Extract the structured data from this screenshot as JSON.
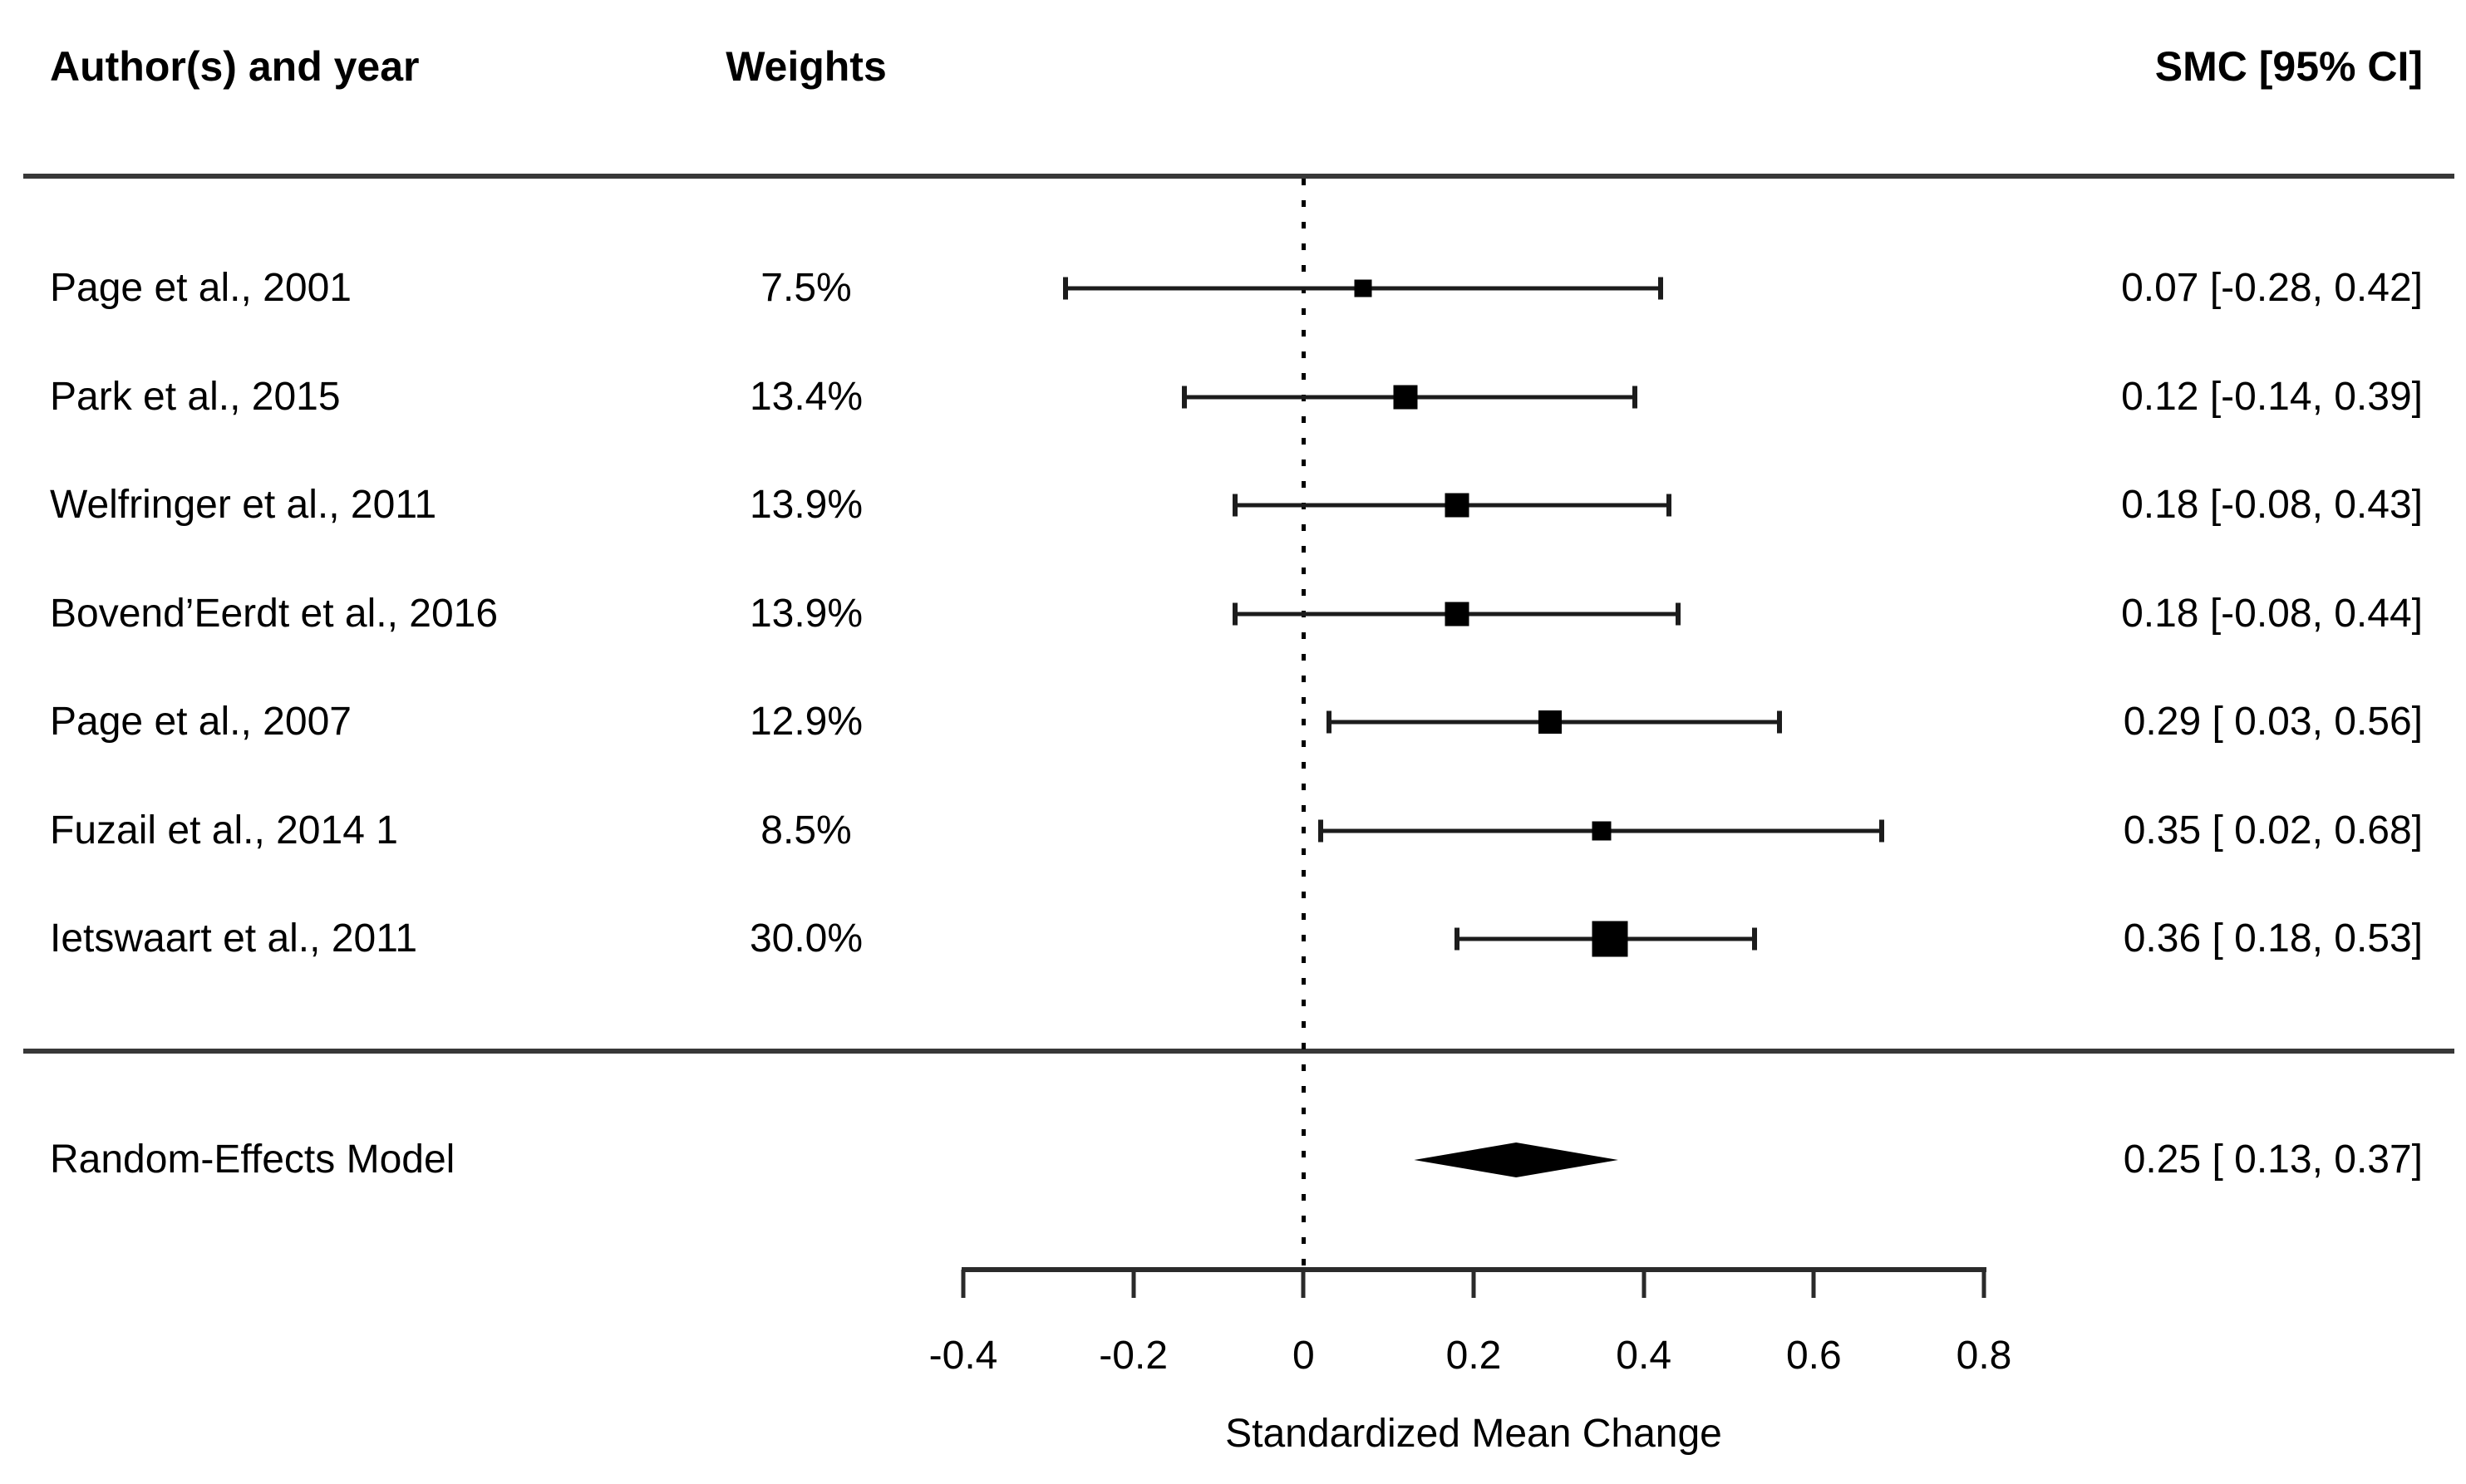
{
  "header": {
    "authors": "Author(s) and year",
    "weights": "Weights",
    "smc": "SMC [95% CI]"
  },
  "chart_data": {
    "type": "forest",
    "xlabel": "Standardized Mean Change",
    "xlim": [
      -0.4,
      0.8
    ],
    "x_ticks": [
      -0.4,
      -0.2,
      0,
      0.2,
      0.4,
      0.6,
      0.8
    ],
    "x_tick_labels": [
      "-0.4",
      "-0.2",
      "0",
      "0.2",
      "0.4",
      "0.6",
      "0.8"
    ],
    "zero_reference_line": 0,
    "studies": [
      {
        "label": "Page et al., 2001",
        "weight": "7.5%",
        "weight_value": 7.5,
        "est": 0.07,
        "lo": -0.28,
        "hi": 0.42,
        "smc": "0.07 [-0.28, 0.42]"
      },
      {
        "label": "Park et al., 2015",
        "weight": "13.4%",
        "weight_value": 13.4,
        "est": 0.12,
        "lo": -0.14,
        "hi": 0.39,
        "smc": "0.12 [-0.14, 0.39]"
      },
      {
        "label": "Welfringer et al., 2011",
        "weight": "13.9%",
        "weight_value": 13.9,
        "est": 0.18,
        "lo": -0.08,
        "hi": 0.43,
        "smc": "0.18 [-0.08, 0.43]"
      },
      {
        "label": "Bovend’Eerdt et al., 2016",
        "weight": "13.9%",
        "weight_value": 13.9,
        "est": 0.18,
        "lo": -0.08,
        "hi": 0.44,
        "smc": "0.18 [-0.08, 0.44]"
      },
      {
        "label": "Page et al., 2007",
        "weight": "12.9%",
        "weight_value": 12.9,
        "est": 0.29,
        "lo": 0.03,
        "hi": 0.56,
        "smc": "0.29 [ 0.03, 0.56]"
      },
      {
        "label": "Fuzail et al., 2014 1",
        "weight": "8.5%",
        "weight_value": 8.5,
        "est": 0.35,
        "lo": 0.02,
        "hi": 0.68,
        "smc": "0.35 [ 0.02, 0.68]"
      },
      {
        "label": "Ietswaart et al., 2011",
        "weight": "30.0%",
        "weight_value": 30.0,
        "est": 0.36,
        "lo": 0.18,
        "hi": 0.53,
        "smc": "0.36 [ 0.18, 0.53]"
      }
    ],
    "summary": {
      "label": "Random-Effects Model",
      "est": 0.25,
      "lo": 0.13,
      "hi": 0.37,
      "smc": "0.25 [ 0.13, 0.37]"
    }
  }
}
